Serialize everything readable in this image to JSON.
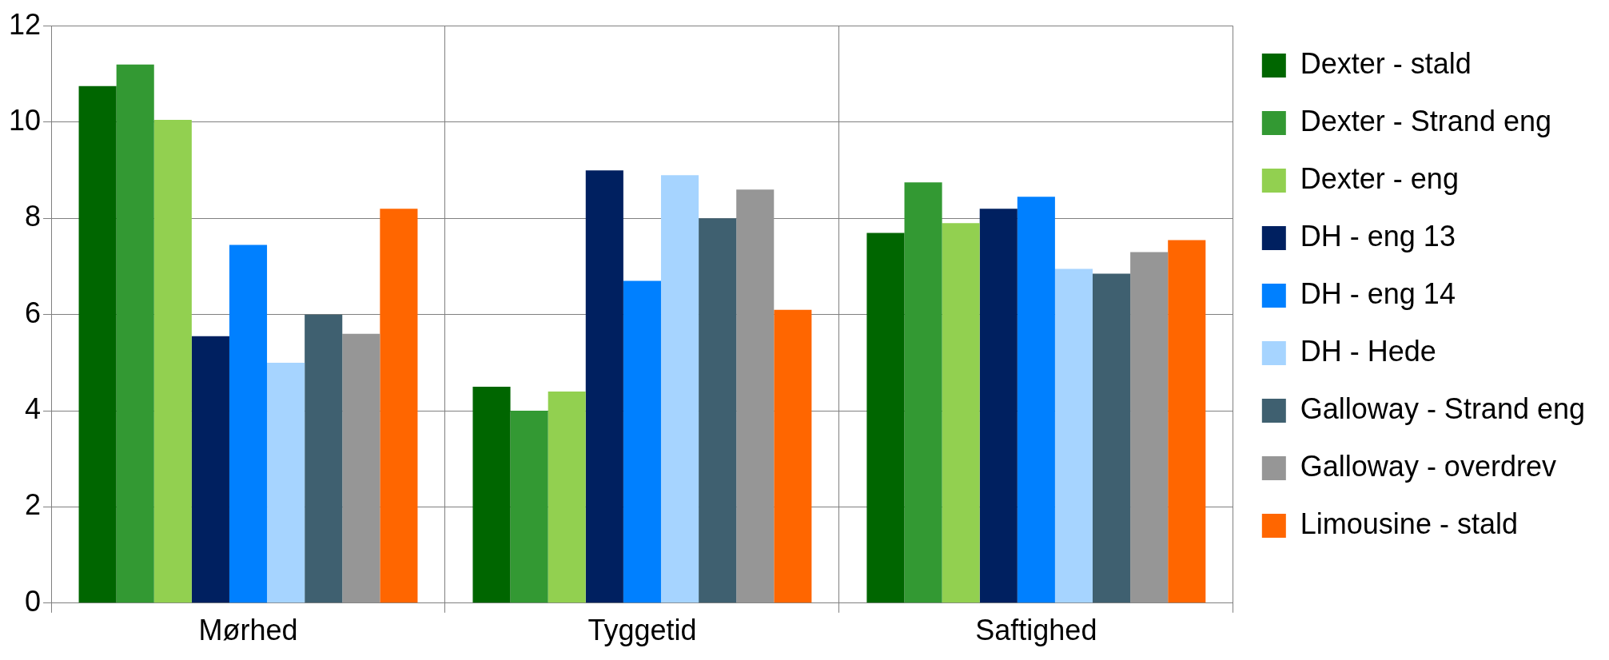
{
  "chart_data": {
    "type": "bar",
    "categories": [
      "Mørhed",
      "Tyggetid",
      "Saftighed"
    ],
    "series": [
      {
        "name": "Dexter - stald",
        "color": "#006600",
        "values": [
          10.75,
          4.5,
          7.7
        ]
      },
      {
        "name": "Dexter - Strand eng",
        "color": "#339933",
        "values": [
          11.2,
          4.0,
          8.75
        ]
      },
      {
        "name": "Dexter - eng",
        "color": "#92d050",
        "values": [
          10.05,
          4.4,
          7.9
        ]
      },
      {
        "name": "DH - eng 13",
        "color": "#002060",
        "values": [
          5.55,
          9.0,
          8.2
        ]
      },
      {
        "name": "DH - eng 14",
        "color": "#0080ff",
        "values": [
          7.45,
          6.7,
          8.45
        ]
      },
      {
        "name": "DH - Hede",
        "color": "#a6d4ff",
        "values": [
          5.0,
          8.9,
          6.95
        ]
      },
      {
        "name": "Galloway - Strand eng",
        "color": "#3f6070",
        "values": [
          6.0,
          8.0,
          6.85
        ]
      },
      {
        "name": "Galloway - overdrev",
        "color": "#969696",
        "values": [
          5.6,
          8.6,
          7.3
        ]
      },
      {
        "name": "Limousine - stald",
        "color": "#ff6600",
        "values": [
          8.2,
          6.1,
          7.55
        ]
      }
    ],
    "ylim": [
      0,
      12
    ],
    "yticks": [
      0,
      2,
      4,
      6,
      8,
      10,
      12
    ],
    "grid": true,
    "legend": "right"
  }
}
